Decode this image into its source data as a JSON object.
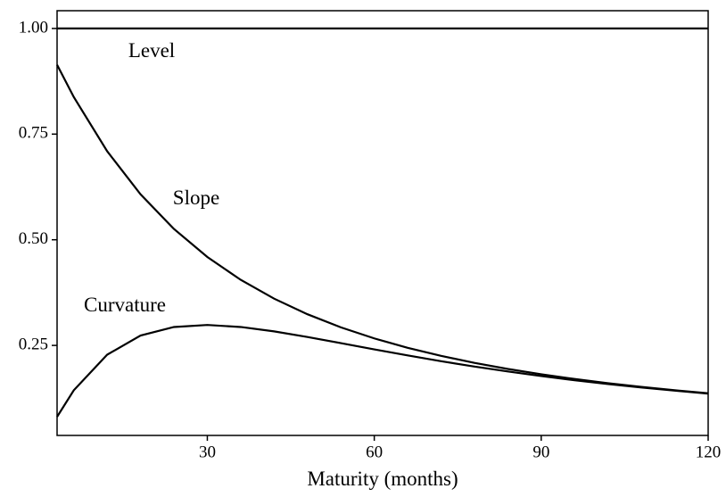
{
  "chart_data": {
    "type": "line",
    "x_label": "Maturity (months)",
    "x": [
      3,
      6,
      12,
      18,
      24,
      30,
      36,
      42,
      48,
      54,
      60,
      66,
      72,
      78,
      84,
      90,
      96,
      102,
      108,
      114,
      120
    ],
    "series": [
      {
        "name": "Level",
        "color": "#000000",
        "values": [
          1,
          1,
          1,
          1,
          1,
          1,
          1,
          1,
          1,
          1,
          1,
          1,
          1,
          1,
          1,
          1,
          1,
          1,
          1,
          1,
          1
        ]
      },
      {
        "name": "Slope",
        "color": "#000000",
        "values": [
          0.9141,
          0.8377,
          0.7095,
          0.6075,
          0.5255,
          0.4593,
          0.4052,
          0.3607,
          0.3237,
          0.2927,
          0.2666,
          0.2443,
          0.2252,
          0.2087,
          0.1943,
          0.1817,
          0.1705,
          0.1607,
          0.1518,
          0.1439,
          0.1367
        ]
      },
      {
        "name": "Curvature",
        "color": "#000000",
        "values": [
          0.0811,
          0.1438,
          0.228,
          0.2734,
          0.2936,
          0.2984,
          0.2936,
          0.2832,
          0.2699,
          0.2554,
          0.2407,
          0.2263,
          0.2127,
          0.2,
          0.1883,
          0.1775,
          0.1676,
          0.1587,
          0.1504,
          0.1429,
          0.136
        ]
      }
    ],
    "xlim": [
      3,
      120
    ],
    "ylim": [
      0.037,
      1.042
    ],
    "xticks": [
      30,
      60,
      90,
      120
    ],
    "yticks": [
      {
        "value": 0.25,
        "label": "0.25"
      },
      {
        "value": 0.5,
        "label": "0.50"
      },
      {
        "value": 0.75,
        "label": "0.75"
      },
      {
        "value": 1,
        "label": "1.00"
      }
    ]
  }
}
